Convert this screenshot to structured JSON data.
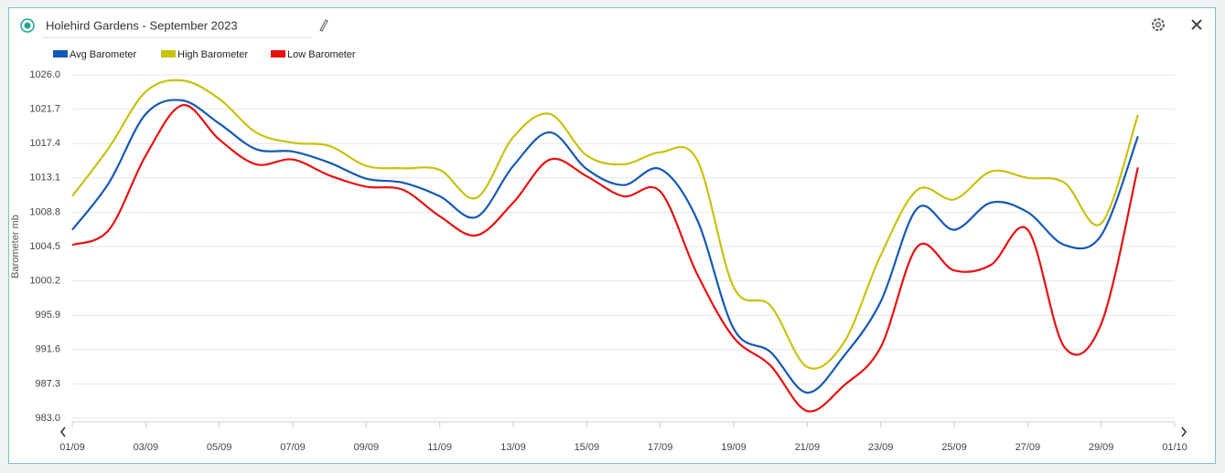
{
  "title": "Holehird Gardens - September 2023",
  "chart_data": {
    "type": "line",
    "y_label": "Barometer mb",
    "x": [
      "01/09",
      "02/09",
      "03/09",
      "04/09",
      "05/09",
      "06/09",
      "07/09",
      "08/09",
      "09/09",
      "10/09",
      "11/09",
      "12/09",
      "13/09",
      "14/09",
      "15/09",
      "16/09",
      "17/09",
      "18/09",
      "19/09",
      "20/09",
      "21/09",
      "22/09",
      "23/09",
      "24/09",
      "25/09",
      "26/09",
      "27/09",
      "28/09",
      "29/09",
      "30/09"
    ],
    "xlim": [
      "01/09",
      "01/10"
    ],
    "xticks": [
      "01/09",
      "03/09",
      "05/09",
      "07/09",
      "09/09",
      "11/09",
      "13/09",
      "15/09",
      "17/09",
      "19/09",
      "21/09",
      "23/09",
      "25/09",
      "27/09",
      "29/09",
      "01/10"
    ],
    "ylim": [
      983,
      1026
    ],
    "yticks": [
      {
        "value": 983,
        "label": "983.0"
      },
      987.3,
      991.6,
      995.9,
      1000.2,
      1004.5,
      1008.8,
      1013.1,
      1017.4,
      1021.7,
      {
        "value": 1026,
        "label": "1026.0"
      }
    ],
    "grid": true,
    "legend": "top-left",
    "series": [
      {
        "name": "Avg Barometer",
        "color": "#1559b5",
        "values": [
          1006.6,
          1012.5,
          1021.1,
          1022.8,
          1019.9,
          1016.7,
          1016.4,
          1015.0,
          1013.0,
          1012.5,
          1010.8,
          1008.2,
          1014.6,
          1018.8,
          1014.2,
          1012.2,
          1014.2,
          1007.9,
          994.2,
          991.3,
          986.2,
          990.8,
          997.6,
          1009.3,
          1006.6,
          1010.0,
          1008.8,
          1004.7,
          1005.9,
          1018.3
        ]
      },
      {
        "name": "High Barometer",
        "color": "#c9c20e",
        "values": [
          1010.8,
          1016.9,
          1023.9,
          1025.3,
          1023.0,
          1018.8,
          1017.5,
          1017.1,
          1014.6,
          1014.3,
          1014.1,
          1010.6,
          1018.2,
          1021.1,
          1015.9,
          1014.8,
          1016.3,
          1015.4,
          999.4,
          997.1,
          989.4,
          992.5,
          1003.4,
          1011.6,
          1010.4,
          1013.9,
          1013.1,
          1012.5,
          1007.4,
          1021.0
        ]
      },
      {
        "name": "Low Barometer",
        "color": "#e8100f",
        "values": [
          1004.7,
          1006.6,
          1015.9,
          1022.2,
          1017.9,
          1014.8,
          1015.4,
          1013.4,
          1012.0,
          1011.6,
          1008.3,
          1005.9,
          1010.0,
          1015.4,
          1013.3,
          1010.8,
          1011.4,
          1001.1,
          993.1,
          989.6,
          983.9,
          987.1,
          991.9,
          1004.5,
          1001.5,
          1002.2,
          1006.6,
          991.9,
          994.8,
          1014.4
        ]
      }
    ]
  }
}
